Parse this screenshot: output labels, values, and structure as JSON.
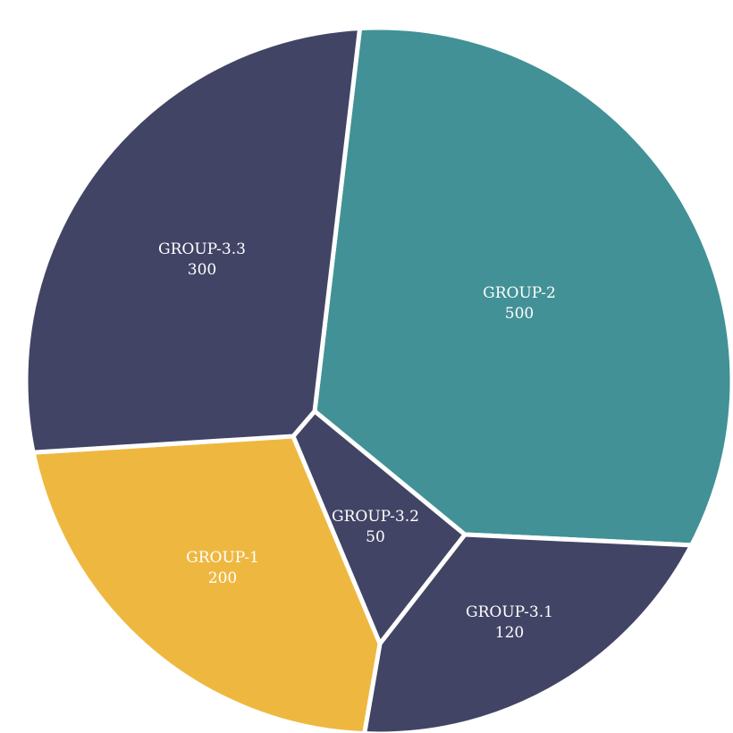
{
  "chart_data": {
    "type": "voronoi-treemap",
    "title": "",
    "cells": [
      {
        "name": "GROUP-2",
        "value": 500,
        "color": "#429196"
      },
      {
        "name": "GROUP-3.1",
        "value": 120,
        "color": "#424466"
      },
      {
        "name": "GROUP-1",
        "value": 200,
        "color": "#EEB840"
      },
      {
        "name": "GROUP-3.2",
        "value": 50,
        "color": "#424466"
      },
      {
        "name": "GROUP-3.3",
        "value": 300,
        "color": "#424466"
      }
    ],
    "border_color": "#ffffff"
  }
}
